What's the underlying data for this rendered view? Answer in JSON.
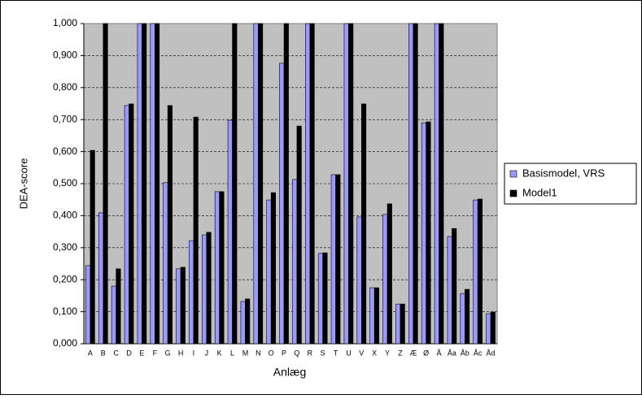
{
  "chart_data": {
    "type": "bar",
    "x_label": "Anlæg",
    "y_label": "DEA-score",
    "categories": [
      "A",
      "B",
      "C",
      "D",
      "E",
      "F",
      "G",
      "H",
      "I",
      "J",
      "K",
      "L",
      "M",
      "N",
      "O",
      "P",
      "Q",
      "R",
      "S",
      "T",
      "U",
      "V",
      "X",
      "Y",
      "Z",
      "Æ",
      "Ø",
      "Å",
      "Åa",
      "Åb",
      "Åc",
      "Åd"
    ],
    "series": [
      {
        "name": "Basismodel, VRS",
        "color": "#9999ff",
        "values": [
          0.244,
          0.409,
          0.18,
          0.744,
          1.0,
          1.0,
          0.503,
          0.234,
          0.322,
          0.34,
          0.475,
          0.698,
          0.132,
          1.0,
          0.449,
          0.876,
          0.513,
          1.0,
          0.282,
          0.528,
          1.0,
          0.396,
          0.175,
          0.404,
          0.124,
          1.0,
          0.69,
          1.0,
          0.335,
          0.157,
          0.449,
          0.094
        ]
      },
      {
        "name": "Model1",
        "color": "#000000",
        "values": [
          0.604,
          1.0,
          0.234,
          0.749,
          1.0,
          1.0,
          0.744,
          0.239,
          0.708,
          0.348,
          0.475,
          1.0,
          0.14,
          1.0,
          0.472,
          1.0,
          0.68,
          1.0,
          0.284,
          0.528,
          1.0,
          0.749,
          0.175,
          0.437,
          0.124,
          1.0,
          0.693,
          1.0,
          0.36,
          0.17,
          0.452,
          0.099
        ]
      }
    ],
    "ylim": [
      0,
      1
    ],
    "yticks": [
      {
        "value": 0,
        "label": "0,000"
      },
      {
        "value": 0.1,
        "label": "0,100"
      },
      {
        "value": 0.2,
        "label": "0,200"
      },
      {
        "value": 0.3,
        "label": "0,300"
      },
      {
        "value": 0.4,
        "label": "0,400"
      },
      {
        "value": 0.5,
        "label": "0,500"
      },
      {
        "value": 0.6,
        "label": "0,600"
      },
      {
        "value": 0.7,
        "label": "0,700"
      },
      {
        "value": 0.8,
        "label": "0,800"
      },
      {
        "value": 0.9,
        "label": "0,900"
      },
      {
        "value": 1,
        "label": "1,000"
      }
    ],
    "grid": true,
    "legend": "right"
  }
}
